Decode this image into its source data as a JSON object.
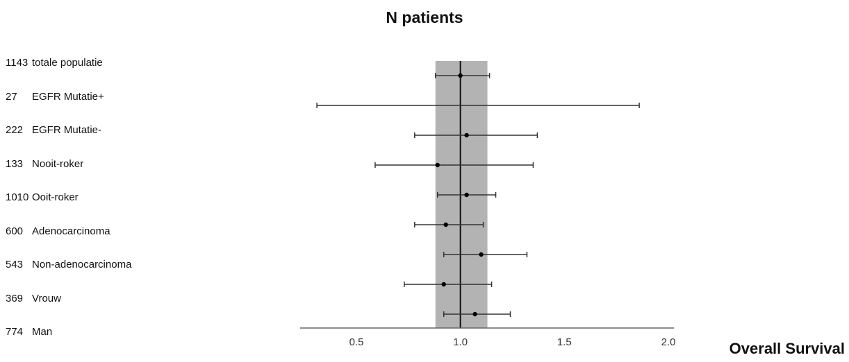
{
  "title": "N patients",
  "footer": "Overall Survival",
  "chart_data": {
    "type": "forest",
    "xlim": [
      0.26,
      2.04
    ],
    "xticks": [
      0.5,
      1.0,
      1.5,
      2.0
    ],
    "xtick_labels": [
      "0.5",
      "1.0",
      "1.5",
      "2.0"
    ],
    "reference_line": 1.0,
    "shaded_band": [
      0.88,
      1.13
    ],
    "rows": [
      {
        "n": "1143",
        "label": "totale populatie",
        "estimate": 1.0,
        "lower": 0.88,
        "upper": 1.14
      },
      {
        "n": "27",
        "label": "EGFR Mutatie+",
        "estimate": null,
        "lower": 0.31,
        "upper": 1.86
      },
      {
        "n": "222",
        "label": "EGFR Mutatie-",
        "estimate": 1.03,
        "lower": 0.78,
        "upper": 1.37
      },
      {
        "n": "133",
        "label": "Nooit-roker",
        "estimate": 0.89,
        "lower": 0.59,
        "upper": 1.35
      },
      {
        "n": "1010",
        "label": "Ooit-roker",
        "estimate": 1.03,
        "lower": 0.89,
        "upper": 1.17
      },
      {
        "n": "600",
        "label": "Adenocarcinoma",
        "estimate": 0.93,
        "lower": 0.78,
        "upper": 1.11
      },
      {
        "n": "543",
        "label": "Non-adenocarcinoma",
        "estimate": 1.1,
        "lower": 0.92,
        "upper": 1.32
      },
      {
        "n": "369",
        "label": "Vrouw",
        "estimate": 0.92,
        "lower": 0.73,
        "upper": 1.15
      },
      {
        "n": "774",
        "label": "Man",
        "estimate": 1.07,
        "lower": 0.92,
        "upper": 1.24
      }
    ]
  }
}
